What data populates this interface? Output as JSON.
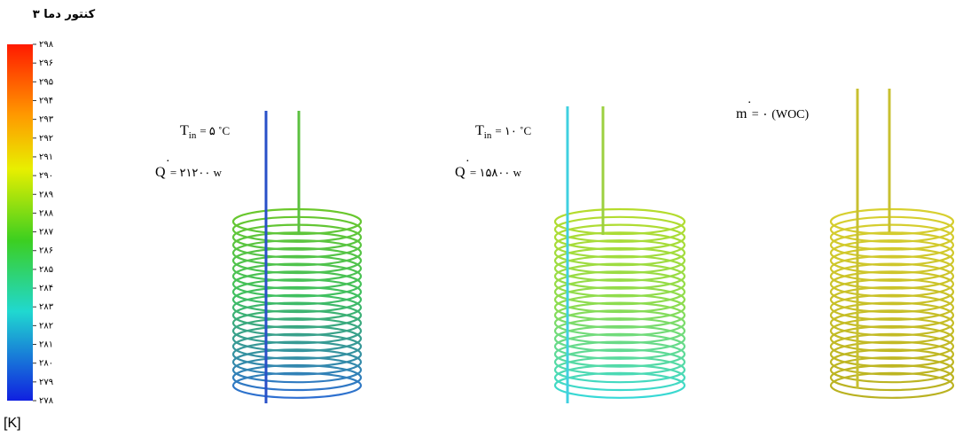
{
  "colorbar": {
    "title": "کنتور دما ۳",
    "unit": "[K]",
    "ticks": [
      "۲۹۸",
      "۲۹۶",
      "۲۹۵",
      "۲۹۴",
      "۲۹۳",
      "۲۹۲",
      "۲۹۱",
      "۲۹۰",
      "۲۸۹",
      "۲۸۸",
      "۲۸۷",
      "۲۸۶",
      "۲۸۵",
      "۲۸۴",
      "۲۸۳",
      "۲۸۲",
      "۲۸۱",
      "۲۸۰",
      "۲۷۹",
      "۲۷۸"
    ]
  },
  "panels": [
    {
      "temperature": {
        "symbol": "T",
        "subscript": "in",
        "rest": "= ۵ ˚C"
      },
      "power": {
        "symbol": "Q",
        "dot": "˙",
        "rest": "= ۲۱۲۰۰ w"
      }
    },
    {
      "temperature": {
        "symbol": "T",
        "subscript": "in",
        "rest": "= ۱۰ ˚C"
      },
      "power": {
        "symbol": "Q",
        "dot": "˙",
        "rest": "= ۱۵۸۰۰ w"
      }
    },
    {
      "flow": {
        "symbol": "m",
        "dot": "˙",
        "rest": "= ۰ (WOC)"
      }
    }
  ]
}
